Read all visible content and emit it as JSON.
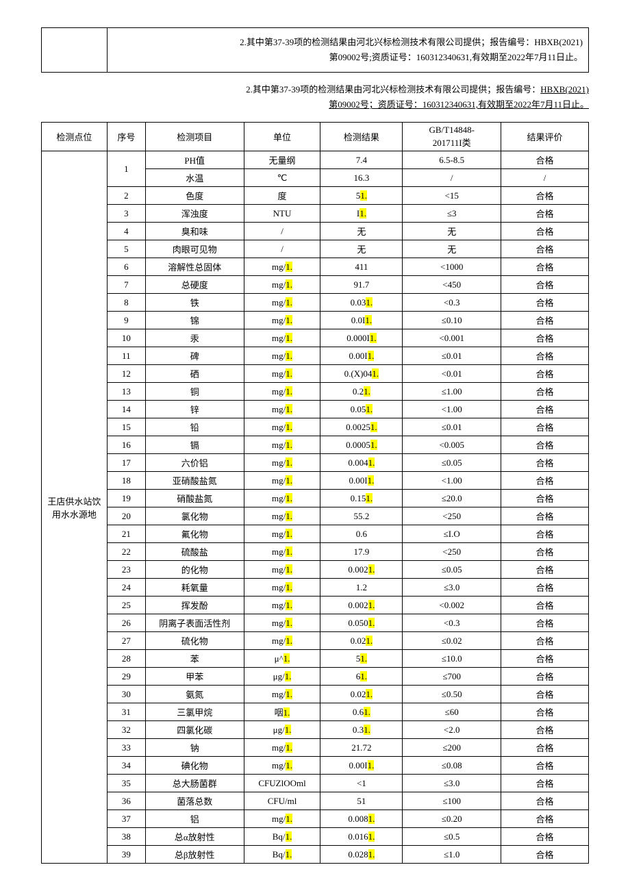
{
  "note1": {
    "line1": "2.其中第37-39项的检测结果由河北兴标检测技术有限公司提供；报告编号：HBXB(2021)",
    "line2": "第09002号;资质证号：160312340631,有效期至2022年7月11日止。"
  },
  "note2": {
    "line1_prefix": "2.其中第37-39项的检测结果由河北兴标检测技术有限公司提供；报告编号：",
    "line1_u": "HBXB(2021)",
    "line2_u": "第09002号；资质证号：160312340631,有效期至2022年7月11日止。"
  },
  "headers": {
    "loc": "检测点位",
    "seq": "序号",
    "item": "检测项目",
    "unit": "单位",
    "res": "检测结果",
    "std_l1": "GB/T14848-",
    "std_l2": "201711I类",
    "eval": "结果评价"
  },
  "location": "王店供水站饮用水水源地",
  "hl_color": "#ffff00",
  "rows": [
    {
      "seq": "1",
      "seq_rowspan": 2,
      "item": "PH值",
      "unit": "无量纲",
      "res": "7.4",
      "res_hl": "",
      "std": "6.5-8.5",
      "eval": "合格"
    },
    {
      "seq": "",
      "item": "水温",
      "unit": "℃",
      "res": "16.3",
      "res_hl": "",
      "std": "/",
      "eval": "/"
    },
    {
      "seq": "2",
      "item": "色度",
      "unit": "度",
      "res": "5",
      "res_hl": "1.",
      "std": "<15",
      "eval": "合格"
    },
    {
      "seq": "3",
      "item": "浑浊度",
      "unit": "NTU",
      "res": "I",
      "res_hl": "1.",
      "std": "≤3",
      "eval": "合格"
    },
    {
      "seq": "4",
      "item": "臭和味",
      "unit": "/",
      "res": "无",
      "res_hl": "",
      "std": "无",
      "eval": "合格"
    },
    {
      "seq": "5",
      "item": "肉眼可见物",
      "unit": "/",
      "res": "无",
      "res_hl": "",
      "std": "无",
      "eval": "合格"
    },
    {
      "seq": "6",
      "item": "溶解性总固体",
      "unit": "mg/",
      "unit_hl": "1.",
      "res": "411",
      "res_hl": "",
      "std": "<1000",
      "eval": "合格"
    },
    {
      "seq": "7",
      "item": "总硬度",
      "unit": "mg/",
      "unit_hl": "1.",
      "res": "91.7",
      "res_hl": "",
      "std": "<450",
      "eval": "合格"
    },
    {
      "seq": "8",
      "item": "铁",
      "unit": "mg/",
      "unit_hl": "1.",
      "res": "0.03",
      "res_hl": "1.",
      "std": "<0.3",
      "eval": "合格"
    },
    {
      "seq": "9",
      "item": "锦",
      "unit": "mg/",
      "unit_hl": "1.",
      "res": "0.0I",
      "res_hl": "1.",
      "std": "≤0.10",
      "eval": "合格"
    },
    {
      "seq": "10",
      "item": "汞",
      "unit": "mg/",
      "unit_hl": "1.",
      "res": "0.000I",
      "res_hl": "1.",
      "std": "<0.001",
      "eval": "合格"
    },
    {
      "seq": "11",
      "item": "碑",
      "unit": "mg/",
      "unit_hl": "1.",
      "res": "0.00I",
      "res_hl": "1.",
      "std": "≤0.01",
      "eval": "合格"
    },
    {
      "seq": "12",
      "item": "硒",
      "unit": "mg/",
      "unit_hl": "1.",
      "res": "0.(X)04",
      "res_hl": "1.",
      "std": "<0.01",
      "eval": "合格"
    },
    {
      "seq": "13",
      "item": "铜",
      "unit": "mg/",
      "unit_hl": "1.",
      "res": "0.2",
      "res_hl": "1.",
      "std": "≤1.00",
      "eval": "合格"
    },
    {
      "seq": "14",
      "item": "锌",
      "unit": "mg/",
      "unit_hl": "1.",
      "res": "0.05",
      "res_hl": "1.",
      "std": "<1.00",
      "eval": "合格"
    },
    {
      "seq": "15",
      "item": "铅",
      "unit": "mg/",
      "unit_hl": "1.",
      "res": "0.0025",
      "res_hl": "1.",
      "std": "≤0.01",
      "eval": "合格"
    },
    {
      "seq": "16",
      "item": "镉",
      "unit": "mg/",
      "unit_hl": "1.",
      "res": "0.0005",
      "res_hl": "1.",
      "std": "<0.005",
      "eval": "合格"
    },
    {
      "seq": "17",
      "item": "六价铝",
      "unit": "mg/",
      "unit_hl": "1.",
      "res": "0.004",
      "res_hl": "1.",
      "std": "≤0.05",
      "eval": "合格"
    },
    {
      "seq": "18",
      "item": "亚硝酸盐氮",
      "unit": "mg/",
      "unit_hl": "1.",
      "res": "0.00I",
      "res_hl": "1.",
      "std": "<1.00",
      "eval": "合格"
    },
    {
      "seq": "19",
      "item": "硝酸盐氮",
      "unit": "mg/",
      "unit_hl": "1.",
      "res": "0.15",
      "res_hl": "1.",
      "std": "≤20.0",
      "eval": "合格"
    },
    {
      "seq": "20",
      "item": "氯化物",
      "unit": "mg/",
      "unit_hl": "1.",
      "res": "55.2",
      "res_hl": "",
      "std": "<250",
      "eval": "合格"
    },
    {
      "seq": "21",
      "item": "氟化物",
      "unit": "mg/",
      "unit_hl": "1.",
      "res": "0.6",
      "res_hl": "",
      "std": "≤I.O",
      "eval": "合格"
    },
    {
      "seq": "22",
      "item": "硫酸盐",
      "unit": "mg/",
      "unit_hl": "1.",
      "res": "17.9",
      "res_hl": "",
      "std": "<250",
      "eval": "合格"
    },
    {
      "seq": "23",
      "item": "的化物",
      "unit": "mg/",
      "unit_hl": "1.",
      "res": "0.002",
      "res_hl": "1.",
      "std": "≤0.05",
      "eval": "合格"
    },
    {
      "seq": "24",
      "item": "耗氧量",
      "unit": "mg/",
      "unit_hl": "1.",
      "res": "1.2",
      "res_hl": "",
      "std": "≤3.0",
      "eval": "合格"
    },
    {
      "seq": "25",
      "item": "挥发酚",
      "unit": "mg/",
      "unit_hl": "1.",
      "res": "0.002",
      "res_hl": "1.",
      "std": "<0.002",
      "eval": "合格"
    },
    {
      "seq": "26",
      "item": "阴离子表面活性剂",
      "unit": "mg/",
      "unit_hl": "1.",
      "res": "0.050",
      "res_hl": "1.",
      "std": "<0.3",
      "eval": "合格"
    },
    {
      "seq": "27",
      "item": "硫化物",
      "unit": "mg/",
      "unit_hl": "1.",
      "res": "0.02",
      "res_hl": "1.",
      "std": "≤0.02",
      "eval": "合格"
    },
    {
      "seq": "28",
      "item": "苯",
      "unit": "μ^",
      "unit_hl": "1.",
      "res": "5",
      "res_hl": "1.",
      "std": "≤10.0",
      "eval": "合格"
    },
    {
      "seq": "29",
      "item": "甲苯",
      "unit": "μg/",
      "unit_hl": "1.",
      "res": "6",
      "res_hl": "1.",
      "std": "≤700",
      "eval": "合格"
    },
    {
      "seq": "30",
      "item": "氨氮",
      "unit": "mg/",
      "unit_hl": "1.",
      "res": "0.02",
      "res_hl": "1.",
      "std": "≤0.50",
      "eval": "合格"
    },
    {
      "seq": "31",
      "item": "三氯甲烷",
      "unit": "咽",
      "unit_hl": "1.",
      "res": "0.6",
      "res_hl": "1.",
      "std": "≤60",
      "eval": "合格"
    },
    {
      "seq": "32",
      "item": "四氯化碳",
      "unit": "μg/",
      "unit_hl": "1.",
      "res": "0.3",
      "res_hl": "1.",
      "std": "<2.0",
      "eval": "合格"
    },
    {
      "seq": "33",
      "item": "钠",
      "unit": "mg/",
      "unit_hl": "1.",
      "res": "21.72",
      "res_hl": "",
      "std": "≤200",
      "eval": "合格"
    },
    {
      "seq": "34",
      "item": "碘化物",
      "unit": "mg/",
      "unit_hl": "1.",
      "res": "0.00I",
      "res_hl": "1.",
      "std": "≤0.08",
      "eval": "合格"
    },
    {
      "seq": "35",
      "item": "总大肠菌群",
      "unit": "CFUZlOOml",
      "res": "<1",
      "res_hl": "",
      "std": "≤3.0",
      "eval": "合格"
    },
    {
      "seq": "36",
      "item": "菌落总数",
      "unit": "CFU/ml",
      "res": "51",
      "res_hl": "",
      "std": "≤100",
      "eval": "合格"
    },
    {
      "seq": "37",
      "item": "铝",
      "unit": "mg/",
      "unit_hl": "1.",
      "res": "0.008",
      "res_hl": "1.",
      "std": "≤0.20",
      "eval": "合格"
    },
    {
      "seq": "38",
      "item": "总α放射性",
      "unit": "Bq/",
      "unit_hl": "1.",
      "res": "0.016",
      "res_hl": "1.",
      "std": "≤0.5",
      "eval": "合格"
    },
    {
      "seq": "39",
      "item": "总β放射性",
      "unit": "Bq/",
      "unit_hl": "1.",
      "res": "0.028",
      "res_hl": "1.",
      "std": "≤1.0",
      "eval": "合格"
    }
  ]
}
